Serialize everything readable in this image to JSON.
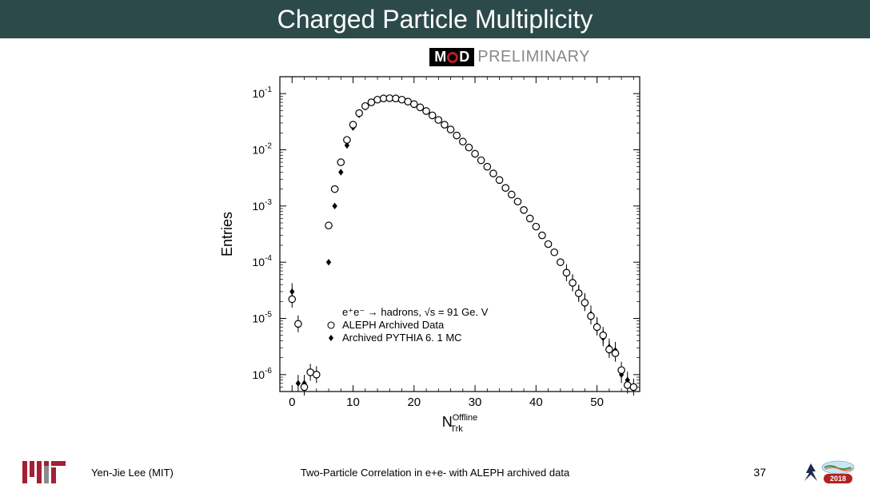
{
  "slide": {
    "title": "Charged Particle Multiplicity",
    "author": "Yen-Jie Lee (MIT)",
    "subtitle": "Two-Particle Correlation in e+e- with ALEPH archived data",
    "page": "37"
  },
  "badge": {
    "mod": "MOD",
    "preliminary": "PRELIMINARY"
  },
  "chart": {
    "type": "scatter",
    "xlabel": "N_Trk^Offline",
    "ylabel": "Entries",
    "xlim": [
      -2,
      57
    ],
    "ylim_log": [
      5e-07,
      0.2
    ],
    "xticks": [
      0,
      10,
      20,
      30,
      40,
      50
    ],
    "yticks_exp": [
      -6,
      -5,
      -4,
      -3,
      -2,
      -1
    ],
    "legend": {
      "line1": "e⁺e⁻ → hadrons, √s = 91 Ge. V",
      "line2": "ALEPH Archived Data",
      "line2_marker": "open-circle",
      "line3": "Archived PYTHIA 6. 1 MC",
      "line3_marker": "filled-diamond",
      "fontsize": 13
    },
    "colors": {
      "axis": "#000000",
      "open_marker_stroke": "#000000",
      "open_marker_fill": "#ffffff",
      "filled_marker": "#000000",
      "background": "#ffffff"
    },
    "marker_size": 4.2,
    "series_open": [
      {
        "x": 0,
        "y": 2.2e-05
      },
      {
        "x": 1,
        "y": 8e-06
      },
      {
        "x": 2,
        "y": 6e-07
      },
      {
        "x": 3,
        "y": 1.1e-06
      },
      {
        "x": 4,
        "y": 1e-06
      },
      {
        "x": 6,
        "y": 0.00045
      },
      {
        "x": 7,
        "y": 0.002
      },
      {
        "x": 8,
        "y": 0.006
      },
      {
        "x": 9,
        "y": 0.015
      },
      {
        "x": 10,
        "y": 0.028
      },
      {
        "x": 11,
        "y": 0.045
      },
      {
        "x": 12,
        "y": 0.06
      },
      {
        "x": 13,
        "y": 0.07
      },
      {
        "x": 14,
        "y": 0.078
      },
      {
        "x": 15,
        "y": 0.082
      },
      {
        "x": 16,
        "y": 0.083
      },
      {
        "x": 17,
        "y": 0.082
      },
      {
        "x": 18,
        "y": 0.078
      },
      {
        "x": 19,
        "y": 0.072
      },
      {
        "x": 20,
        "y": 0.065
      },
      {
        "x": 21,
        "y": 0.057
      },
      {
        "x": 22,
        "y": 0.049
      },
      {
        "x": 23,
        "y": 0.041
      },
      {
        "x": 24,
        "y": 0.034
      },
      {
        "x": 25,
        "y": 0.028
      },
      {
        "x": 26,
        "y": 0.023
      },
      {
        "x": 27,
        "y": 0.018
      },
      {
        "x": 28,
        "y": 0.014
      },
      {
        "x": 29,
        "y": 0.011
      },
      {
        "x": 30,
        "y": 0.0085
      },
      {
        "x": 31,
        "y": 0.0065
      },
      {
        "x": 32,
        "y": 0.005
      },
      {
        "x": 33,
        "y": 0.0038
      },
      {
        "x": 34,
        "y": 0.0029
      },
      {
        "x": 35,
        "y": 0.0021
      },
      {
        "x": 36,
        "y": 0.0016
      },
      {
        "x": 37,
        "y": 0.0012
      },
      {
        "x": 38,
        "y": 0.00085
      },
      {
        "x": 39,
        "y": 0.0006
      },
      {
        "x": 40,
        "y": 0.00043
      },
      {
        "x": 41,
        "y": 0.0003
      },
      {
        "x": 42,
        "y": 0.00021
      },
      {
        "x": 43,
        "y": 0.00015
      },
      {
        "x": 44,
        "y": 0.0001
      },
      {
        "x": 45,
        "y": 6.5e-05
      },
      {
        "x": 46,
        "y": 4.3e-05
      },
      {
        "x": 47,
        "y": 2.8e-05
      },
      {
        "x": 48,
        "y": 1.9e-05
      },
      {
        "x": 49,
        "y": 1.1e-05
      },
      {
        "x": 50,
        "y": 7e-06
      },
      {
        "x": 51,
        "y": 5e-06
      },
      {
        "x": 52,
        "y": 2.8e-06
      },
      {
        "x": 53,
        "y": 2.4e-06
      },
      {
        "x": 54,
        "y": 1.2e-06
      },
      {
        "x": 55,
        "y": 6.5e-07
      },
      {
        "x": 56,
        "y": 6e-07
      }
    ],
    "series_filled": [
      {
        "x": 0,
        "y": 3e-05
      },
      {
        "x": 1,
        "y": 7e-07
      },
      {
        "x": 2,
        "y": 7e-07
      },
      {
        "x": 6,
        "y": 0.0001
      },
      {
        "x": 7,
        "y": 0.001
      },
      {
        "x": 8,
        "y": 0.004
      },
      {
        "x": 9,
        "y": 0.012
      },
      {
        "x": 10,
        "y": 0.025
      },
      {
        "x": 11,
        "y": 0.042
      },
      {
        "x": 12,
        "y": 0.057
      },
      {
        "x": 13,
        "y": 0.068
      },
      {
        "x": 14,
        "y": 0.076
      },
      {
        "x": 15,
        "y": 0.081
      },
      {
        "x": 16,
        "y": 0.083
      },
      {
        "x": 17,
        "y": 0.082
      },
      {
        "x": 18,
        "y": 0.078
      },
      {
        "x": 19,
        "y": 0.072
      },
      {
        "x": 20,
        "y": 0.065
      },
      {
        "x": 21,
        "y": 0.057
      },
      {
        "x": 22,
        "y": 0.049
      },
      {
        "x": 23,
        "y": 0.041
      },
      {
        "x": 24,
        "y": 0.034
      },
      {
        "x": 25,
        "y": 0.028
      },
      {
        "x": 26,
        "y": 0.023
      },
      {
        "x": 27,
        "y": 0.018
      },
      {
        "x": 28,
        "y": 0.014
      },
      {
        "x": 29,
        "y": 0.011
      },
      {
        "x": 30,
        "y": 0.0085
      },
      {
        "x": 31,
        "y": 0.0065
      },
      {
        "x": 32,
        "y": 0.005
      },
      {
        "x": 33,
        "y": 0.0038
      },
      {
        "x": 34,
        "y": 0.0029
      },
      {
        "x": 35,
        "y": 0.0021
      },
      {
        "x": 36,
        "y": 0.0016
      },
      {
        "x": 37,
        "y": 0.0012
      },
      {
        "x": 38,
        "y": 0.00085
      },
      {
        "x": 39,
        "y": 0.0006
      },
      {
        "x": 40,
        "y": 0.00043
      },
      {
        "x": 41,
        "y": 0.0003
      },
      {
        "x": 42,
        "y": 0.00021
      },
      {
        "x": 43,
        "y": 0.00015
      },
      {
        "x": 44,
        "y": 0.0001
      },
      {
        "x": 45,
        "y": 6.5e-05
      },
      {
        "x": 46,
        "y": 4.3e-05
      },
      {
        "x": 47,
        "y": 2.8e-05
      },
      {
        "x": 48,
        "y": 2e-05
      },
      {
        "x": 49,
        "y": 1.2e-05
      },
      {
        "x": 50,
        "y": 7.5e-06
      },
      {
        "x": 51,
        "y": 4.5e-06
      },
      {
        "x": 52,
        "y": 3.1e-06
      },
      {
        "x": 53,
        "y": 2.7e-06
      },
      {
        "x": 54,
        "y": 1e-06
      },
      {
        "x": 55,
        "y": 8e-07
      }
    ]
  }
}
